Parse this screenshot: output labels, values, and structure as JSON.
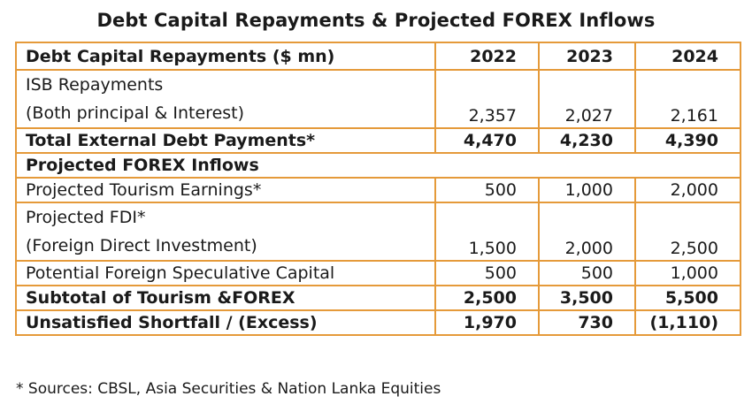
{
  "title": "Debt Capital Repayments & Projected FOREX Inflows",
  "header": {
    "label": "Debt Capital Repayments ($ mn)",
    "years": [
      "2022",
      "2023",
      "2024"
    ]
  },
  "rows": [
    {
      "label_line1": "ISB Repayments",
      "label_line2": "(Both principal & Interest)",
      "values": [
        "2,357",
        "2,027",
        "2,161"
      ]
    },
    {
      "label": "Total External Debt Payments*",
      "values": [
        "4,470",
        "4,230",
        "4,390"
      ]
    },
    {
      "label": "Projected FOREX Inflows"
    },
    {
      "label": "Projected Tourism Earnings*",
      "values": [
        "500",
        "1,000",
        "2,000"
      ]
    },
    {
      "label_line1": "Projected FDI*",
      "label_line2": "(Foreign Direct Investment)",
      "values": [
        "1,500",
        "2,000",
        "2,500"
      ]
    },
    {
      "label": "Potential Foreign Speculative Capital",
      "values": [
        "500",
        "500",
        "1,000"
      ]
    },
    {
      "label": "Subtotal of Tourism &FOREX",
      "values": [
        "2,500",
        "3,500",
        "5,500"
      ]
    },
    {
      "label": "Unsatisfied Shortfall / (Excess)",
      "values": [
        "1,970",
        "730",
        "(1,110)"
      ]
    }
  ],
  "footnote": "* Sources: CBSL, Asia Securities & Nation Lanka Equities",
  "colors": {
    "border": "#e59a3a",
    "text": "#1a1a1a"
  }
}
